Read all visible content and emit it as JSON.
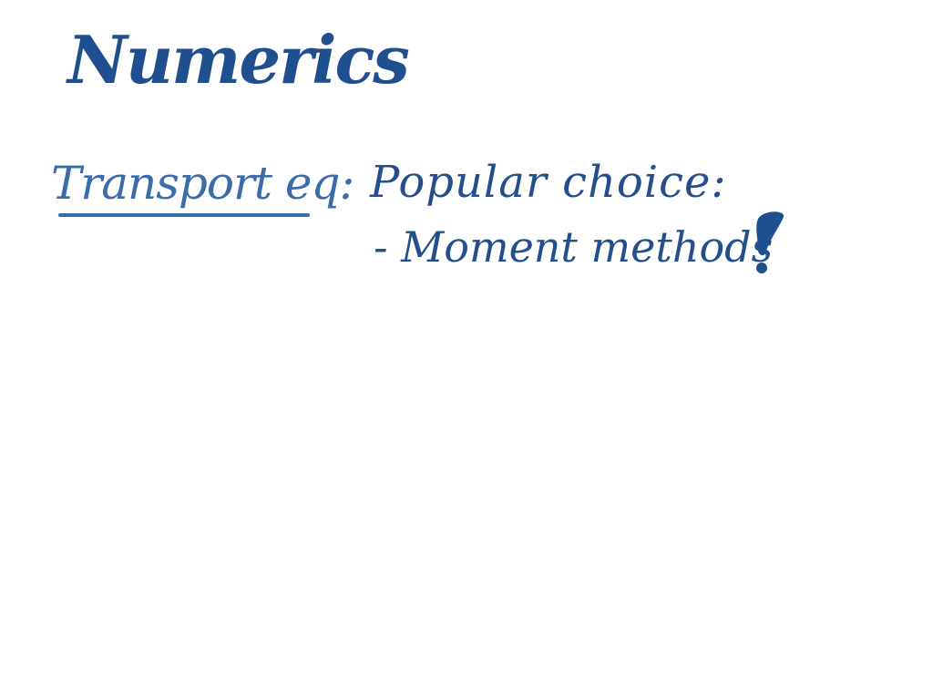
{
  "slide": {
    "title": "Numerics",
    "label": "Transport eq:",
    "line1": "Popular choice:",
    "line2": "- Moment methods",
    "emphasis_mark": "!",
    "colors": {
      "title_ink": "#1f4f8f",
      "label_ink": "#3a6cab",
      "body_ink": "#234f8d",
      "background": "#ffffff"
    }
  }
}
